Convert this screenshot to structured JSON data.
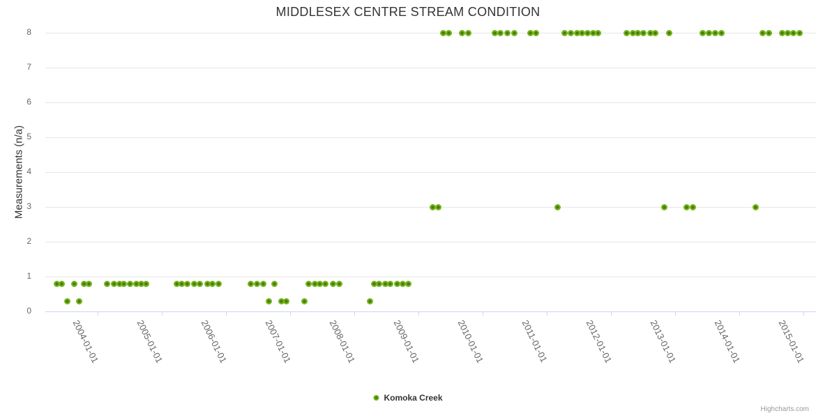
{
  "title": "MIDDLESEX CENTRE STREAM CONDITION",
  "y_axis": {
    "title": "Measurements (n/a)",
    "ticks": [
      0,
      1,
      2,
      3,
      4,
      5,
      6,
      7,
      8
    ]
  },
  "x_axis": {
    "ticks": [
      "2004-01-01",
      "2005-01-01",
      "2006-01-01",
      "2007-01-01",
      "2008-01-01",
      "2009-01-01",
      "2010-01-01",
      "2011-01-01",
      "2012-01-01",
      "2013-01-01",
      "2014-01-01",
      "2015-01-01"
    ]
  },
  "legend": {
    "label": "Komoka Creek",
    "position": "bottom-center"
  },
  "credits": "Highcharts.com",
  "colors": {
    "marker": "#75b61e",
    "marker_core": "#4b7a0e",
    "grid": "#e6e6e6",
    "axis": "#ccd6eb",
    "label": "#666666",
    "title": "#333333"
  },
  "chart_data": {
    "type": "scatter",
    "title": "MIDDLESEX CENTRE STREAM CONDITION",
    "xlabel": "",
    "ylabel": "Measurements (n/a)",
    "xlim": [
      2003.174,
      2015.185
    ],
    "ylim": [
      0,
      8
    ],
    "grid": "horizontal-only",
    "legend_position": "bottom-center",
    "x_unit": "decimal-year",
    "series": [
      {
        "name": "Komoka Creek",
        "color": "#75b61e",
        "points": [
          [
            2003.35,
            0.8
          ],
          [
            2003.43,
            0.8
          ],
          [
            2003.52,
            0.3
          ],
          [
            2003.63,
            0.8
          ],
          [
            2003.7,
            0.3
          ],
          [
            2003.78,
            0.8
          ],
          [
            2003.85,
            0.8
          ],
          [
            2004.14,
            0.8
          ],
          [
            2004.24,
            0.8
          ],
          [
            2004.33,
            0.8
          ],
          [
            2004.4,
            0.8
          ],
          [
            2004.5,
            0.8
          ],
          [
            2004.59,
            0.8
          ],
          [
            2004.67,
            0.8
          ],
          [
            2004.75,
            0.8
          ],
          [
            2005.22,
            0.8
          ],
          [
            2005.3,
            0.8
          ],
          [
            2005.39,
            0.8
          ],
          [
            2005.49,
            0.8
          ],
          [
            2005.58,
            0.8
          ],
          [
            2005.7,
            0.8
          ],
          [
            2005.78,
            0.8
          ],
          [
            2005.87,
            0.8
          ],
          [
            2006.38,
            0.8
          ],
          [
            2006.47,
            0.8
          ],
          [
            2006.57,
            0.8
          ],
          [
            2006.66,
            0.3
          ],
          [
            2006.74,
            0.8
          ],
          [
            2006.85,
            0.3
          ],
          [
            2006.93,
            0.3
          ],
          [
            2007.21,
            0.3
          ],
          [
            2007.28,
            0.8
          ],
          [
            2007.37,
            0.8
          ],
          [
            2007.45,
            0.8
          ],
          [
            2007.54,
            0.8
          ],
          [
            2007.66,
            0.8
          ],
          [
            2007.76,
            0.8
          ],
          [
            2008.23,
            0.3
          ],
          [
            2008.3,
            0.8
          ],
          [
            2008.38,
            0.8
          ],
          [
            2008.47,
            0.8
          ],
          [
            2008.55,
            0.8
          ],
          [
            2008.66,
            0.8
          ],
          [
            2008.74,
            0.8
          ],
          [
            2008.83,
            0.8
          ],
          [
            2009.21,
            3
          ],
          [
            2009.3,
            3
          ],
          [
            2009.37,
            8
          ],
          [
            2009.46,
            8
          ],
          [
            2009.67,
            8
          ],
          [
            2009.77,
            8
          ],
          [
            2010.18,
            8
          ],
          [
            2010.27,
            8
          ],
          [
            2010.38,
            8
          ],
          [
            2010.48,
            8
          ],
          [
            2010.73,
            8
          ],
          [
            2010.82,
            8
          ],
          [
            2011.16,
            3
          ],
          [
            2011.27,
            8
          ],
          [
            2011.36,
            8
          ],
          [
            2011.46,
            8
          ],
          [
            2011.54,
            8
          ],
          [
            2011.63,
            8
          ],
          [
            2011.71,
            8
          ],
          [
            2011.79,
            8
          ],
          [
            2012.23,
            8
          ],
          [
            2012.33,
            8
          ],
          [
            2012.41,
            8
          ],
          [
            2012.5,
            8
          ],
          [
            2012.6,
            8
          ],
          [
            2012.68,
            8
          ],
          [
            2012.82,
            3
          ],
          [
            2012.9,
            8
          ],
          [
            2013.17,
            3
          ],
          [
            2013.27,
            3
          ],
          [
            2013.42,
            8
          ],
          [
            2013.52,
            8
          ],
          [
            2013.61,
            8
          ],
          [
            2013.71,
            8
          ],
          [
            2014.24,
            3
          ],
          [
            2014.35,
            8
          ],
          [
            2014.45,
            8
          ],
          [
            2014.66,
            8
          ],
          [
            2014.75,
            8
          ],
          [
            2014.83,
            8
          ],
          [
            2014.93,
            8
          ]
        ]
      }
    ]
  }
}
